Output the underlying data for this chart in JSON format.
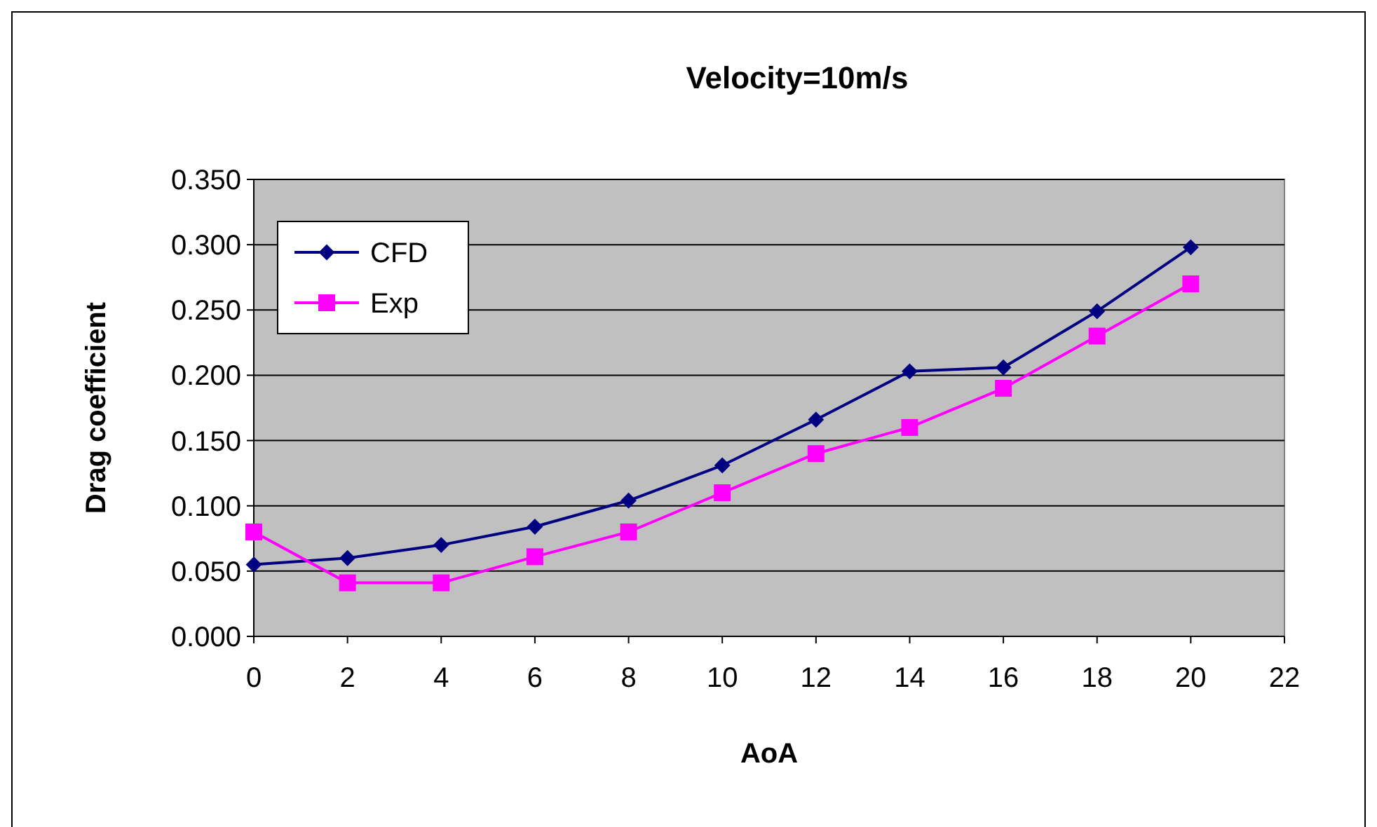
{
  "chart_data": {
    "type": "line",
    "title": "Velocity=10m/s",
    "xlabel": "AoA",
    "ylabel": "Drag coefficient",
    "x": [
      0,
      2,
      4,
      6,
      8,
      10,
      12,
      14,
      16,
      18,
      20
    ],
    "series": [
      {
        "name": "CFD",
        "color": "#000080",
        "marker": "diamond",
        "values": [
          0.055,
          0.06,
          0.07,
          0.084,
          0.104,
          0.131,
          0.166,
          0.203,
          0.206,
          0.249,
          0.298
        ]
      },
      {
        "name": "Exp",
        "color": "#ff00ff",
        "marker": "square",
        "values": [
          0.08,
          0.041,
          0.041,
          0.061,
          0.08,
          0.11,
          0.14,
          0.16,
          0.19,
          0.23,
          0.27
        ]
      }
    ],
    "xlim": [
      0,
      22
    ],
    "xticks": [
      0,
      2,
      4,
      6,
      8,
      10,
      12,
      14,
      16,
      18,
      20,
      22
    ],
    "ylim": [
      0,
      0.35
    ],
    "yticks": [
      {
        "value": 0,
        "label": "0.000"
      },
      {
        "value": 0.05,
        "label": "0.050"
      },
      {
        "value": 0.1,
        "label": "0.100"
      },
      {
        "value": 0.15,
        "label": "0.150"
      },
      {
        "value": 0.2,
        "label": "0.200"
      },
      {
        "value": 0.25,
        "label": "0.250"
      },
      {
        "value": 0.3,
        "label": "0.300"
      },
      {
        "value": 0.35,
        "label": "0.350"
      }
    ],
    "grid": "y",
    "legend": "top left"
  }
}
